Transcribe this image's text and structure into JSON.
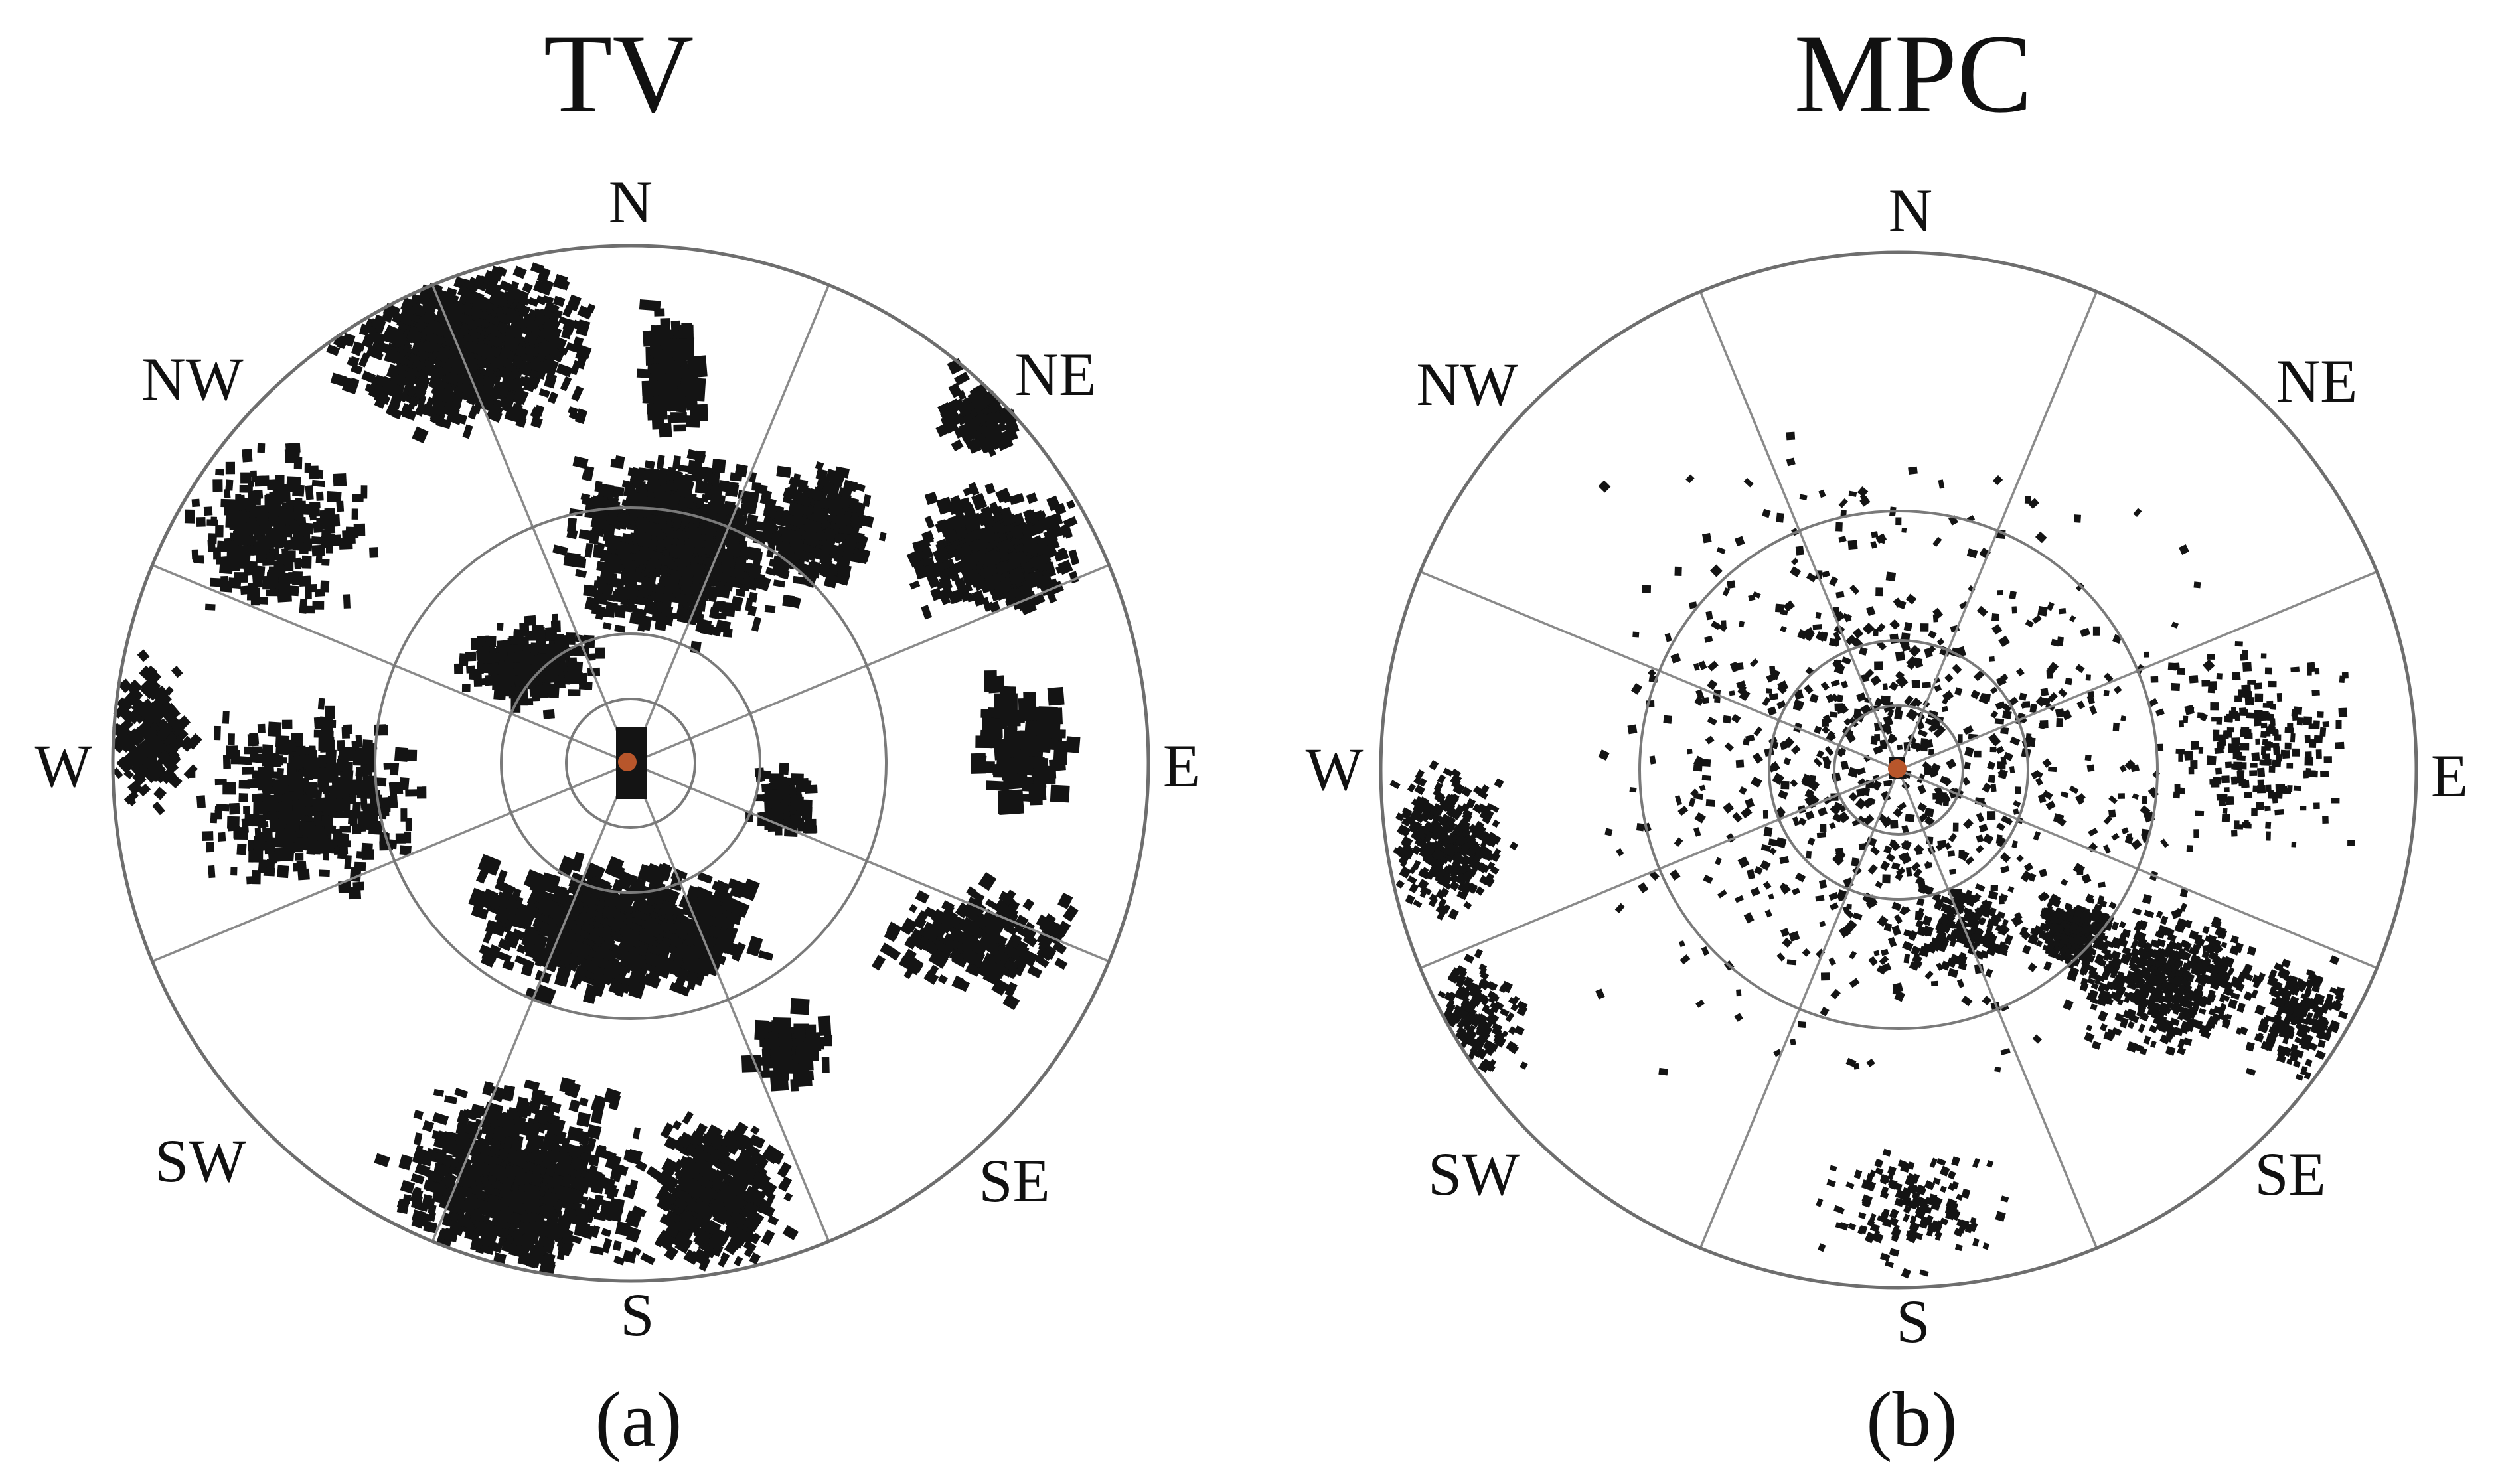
{
  "panels": [
    {
      "id": "a",
      "title": "TV",
      "caption": "(a)",
      "directions": {
        "N": "N",
        "NE": "NE",
        "E": "E",
        "SE": "SE",
        "S": "S",
        "SW": "SW",
        "W": "W",
        "NW": "NW"
      },
      "colors": {
        "buildings": "#141414",
        "rings": "#7a7a7a",
        "site_marker": "#b8562b"
      }
    },
    {
      "id": "b",
      "title": "MPC",
      "caption": "(b)",
      "directions": {
        "N": "N",
        "NE": "NE",
        "E": "E",
        "SE": "SE",
        "S": "S",
        "SW": "SW",
        "W": "W",
        "NW": "NW"
      },
      "colors": {
        "buildings": "#141414",
        "rings": "#7a7a7a",
        "site_marker": "#b8562b"
      }
    }
  ]
}
